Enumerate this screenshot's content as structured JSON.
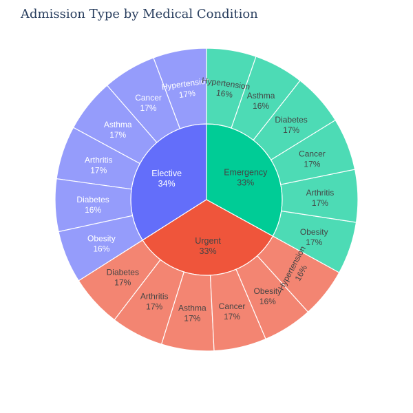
{
  "chart_data": {
    "type": "sunburst",
    "title": "Admission Type by Medical Condition",
    "root": [
      {
        "name": "Elective",
        "percent_label": "34%",
        "value": 34,
        "color": "#636efa",
        "child_color": "#959cfb",
        "text_color": "#ffffff",
        "children": [
          {
            "name": "Hypertension",
            "percent_label": "17%",
            "value": 5.7
          },
          {
            "name": "Cancer",
            "percent_label": "17%",
            "value": 5.7
          },
          {
            "name": "Asthma",
            "percent_label": "17%",
            "value": 5.7
          },
          {
            "name": "Arthritis",
            "percent_label": "17%",
            "value": 5.7
          },
          {
            "name": "Diabetes",
            "percent_label": "16%",
            "value": 5.6
          },
          {
            "name": "Obesity",
            "percent_label": "16%",
            "value": 5.6
          }
        ]
      },
      {
        "name": "Urgent",
        "percent_label": "33%",
        "value": 33,
        "color": "#ef553b",
        "child_color": "#f38572",
        "text_color": "#444444",
        "children": [
          {
            "name": "Diabetes",
            "percent_label": "17%",
            "value": 5.6
          },
          {
            "name": "Arthritis",
            "percent_label": "17%",
            "value": 5.6
          },
          {
            "name": "Asthma",
            "percent_label": "17%",
            "value": 5.6
          },
          {
            "name": "Cancer",
            "percent_label": "17%",
            "value": 5.6
          },
          {
            "name": "Obesity",
            "percent_label": "16%",
            "value": 5.3
          },
          {
            "name": "Hypertension",
            "percent_label": "16%",
            "value": 5.3
          }
        ]
      },
      {
        "name": "Emergency",
        "percent_label": "33%",
        "value": 33,
        "color": "#00cc96",
        "child_color": "#4ddbb5",
        "text_color": "#444444",
        "children": [
          {
            "name": "Obesity",
            "percent_label": "17%",
            "value": 5.6
          },
          {
            "name": "Arthritis",
            "percent_label": "17%",
            "value": 5.6
          },
          {
            "name": "Cancer",
            "percent_label": "17%",
            "value": 5.6
          },
          {
            "name": "Diabetes",
            "percent_label": "17%",
            "value": 5.6
          },
          {
            "name": "Asthma",
            "percent_label": "16%",
            "value": 5.3
          },
          {
            "name": "Hypertension",
            "percent_label": "16%",
            "value": 5.3
          }
        ]
      }
    ]
  }
}
